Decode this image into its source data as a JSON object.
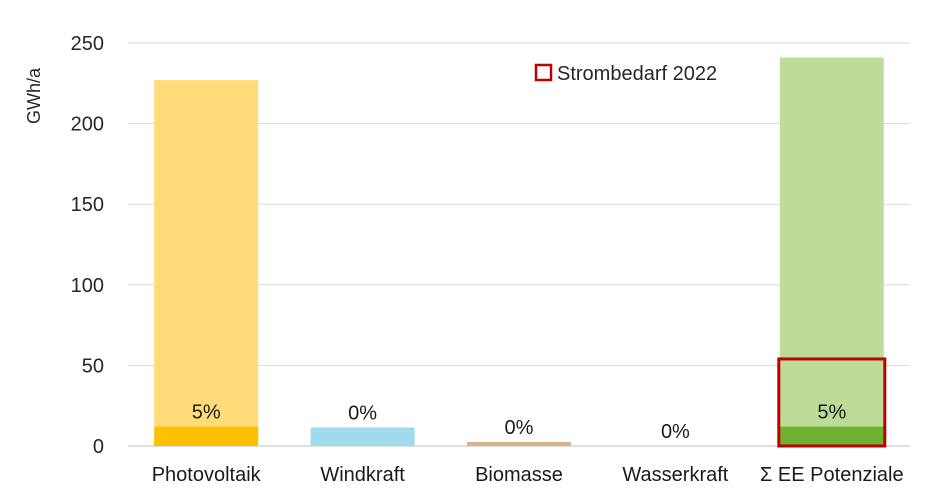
{
  "chart_data": {
    "type": "bar",
    "ylabel": "GWh/a",
    "xlabel": "",
    "ylim": [
      0,
      250
    ],
    "yticks": [
      0,
      50,
      100,
      150,
      200,
      250
    ],
    "grid": true,
    "legend_position": "top-right",
    "categories": [
      "Photovoltaik",
      "Windkraft",
      "Biomasse",
      "Wasserkraft",
      "Σ EE Potenziale"
    ],
    "series": [
      {
        "values": [
          227,
          11.5,
          2.5,
          0,
          241
        ],
        "colors": [
          "#ffdb7a",
          "#9edbeb",
          "#d9b38c",
          "#cccccc",
          "#bcdc98"
        ]
      },
      {
        "values": [
          12,
          0,
          0,
          0,
          12
        ],
        "colors": [
          "#ffc000",
          "#8ed6ea",
          "#d9b38c",
          "#cccccc",
          "#70b032"
        ]
      }
    ],
    "data_labels": [
      "5%",
      "0%",
      "0%",
      "0%",
      "5%"
    ],
    "reference": {
      "name": "Strombedarf 2022",
      "value": 54,
      "category_index": 4,
      "color": "#c00000"
    }
  }
}
